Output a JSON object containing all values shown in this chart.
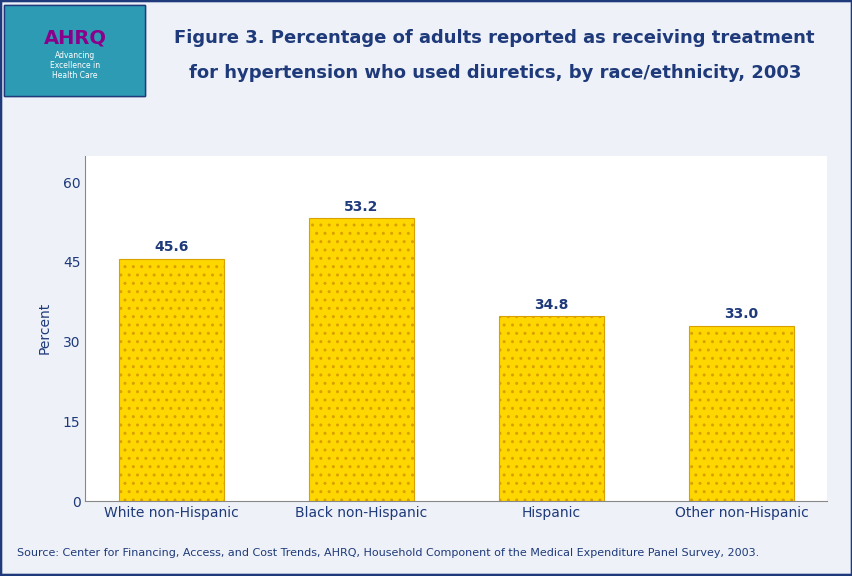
{
  "categories": [
    "White non-Hispanic",
    "Black non-Hispanic",
    "Hispanic",
    "Other non-Hispanic"
  ],
  "values": [
    45.6,
    53.2,
    34.8,
    33.0
  ],
  "bar_color": "#FFD700",
  "bar_edgecolor": "#DAA000",
  "ylabel": "Percent",
  "ylim": [
    0,
    65
  ],
  "yticks": [
    0,
    15,
    30,
    45,
    60
  ],
  "title_line1": "Figure 3. Percentage of adults reported as receiving treatment",
  "title_line2": "for hypertension who used diuretics, by race/ethnicity, 2003",
  "source_text": "Source: Center for Financing, Access, and Cost Trends, AHRQ, Household Component of the Medical Expenditure Panel Survey, 2003.",
  "title_color": "#1F3A7A",
  "label_color": "#1F3A7A",
  "axis_label_color": "#1F3A7A",
  "tick_label_color": "#1F3A7A",
  "source_color": "#1F3A7A",
  "background_color": "#EEF2F8",
  "plot_background": "#FFFFFF",
  "border_color": "#1F3A7A",
  "divider_color": "#1F3A7A",
  "value_fontsize": 10,
  "tick_fontsize": 10,
  "ylabel_fontsize": 10,
  "title_fontsize": 13,
  "source_fontsize": 8,
  "bar_width": 0.55
}
